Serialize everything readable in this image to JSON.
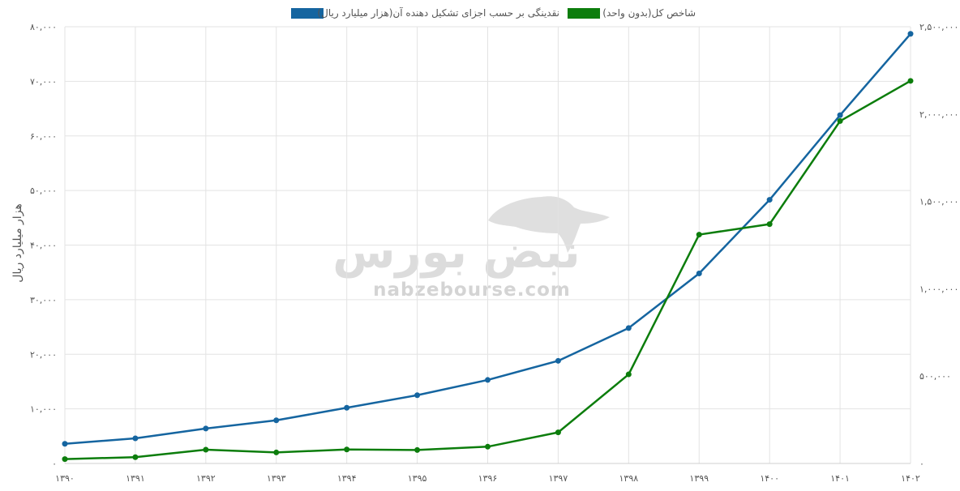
{
  "chart_data": {
    "type": "line",
    "x": [
      "۱۳۹۰",
      "۱۳۹۱",
      "۱۳۹۲",
      "۱۳۹۳",
      "۱۳۹۴",
      "۱۳۹۵",
      "۱۳۹۶",
      "۱۳۹۷",
      "۱۳۹۸",
      "۱۳۹۹",
      "۱۴۰۰",
      "۱۴۰۱",
      "۱۴۰۲"
    ],
    "series": [
      {
        "name": "نقدینگی بر حسب اجزای تشکیل دهنده آن(هزار میلیارد ریال)",
        "color": "#1565a0",
        "axis": "left",
        "values": [
          3600,
          4600,
          6400,
          7900,
          10200,
          12500,
          15300,
          18800,
          24800,
          34800,
          48300,
          63800,
          78700
        ]
      },
      {
        "name": "شاخص کل(بدون واحد)",
        "color": "#0c7d0c",
        "axis": "right",
        "values": [
          25000,
          36000,
          79000,
          63000,
          80000,
          77000,
          96000,
          178000,
          510000,
          1310000,
          1370000,
          1960000,
          2190000
        ]
      }
    ],
    "yleft": {
      "label": "هزار میلیارد ریال",
      "range": [
        0,
        80000
      ],
      "ticks": [
        0,
        10000,
        20000,
        30000,
        40000,
        50000,
        60000,
        70000,
        80000
      ],
      "tick_labels": [
        "۰",
        "۱۰,۰۰۰",
        "۲۰,۰۰۰",
        "۳۰,۰۰۰",
        "۴۰,۰۰۰",
        "۵۰,۰۰۰",
        "۶۰,۰۰۰",
        "۷۰,۰۰۰",
        "۸۰,۰۰۰"
      ]
    },
    "yright": {
      "range": [
        0,
        2500000
      ],
      "ticks": [
        0,
        500000,
        1000000,
        1500000,
        2000000,
        2500000
      ],
      "tick_labels": [
        "۰",
        "۵۰۰,۰۰۰",
        "۱,۰۰۰,۰۰۰",
        "۱,۵۰۰,۰۰۰",
        "۲,۰۰۰,۰۰۰",
        "۲,۵۰۰,۰۰۰"
      ]
    },
    "grid": true,
    "legend_position": "top-center"
  },
  "watermark": {
    "logo_text": "نبض بورس",
    "site": "nabzebourse.com"
  }
}
